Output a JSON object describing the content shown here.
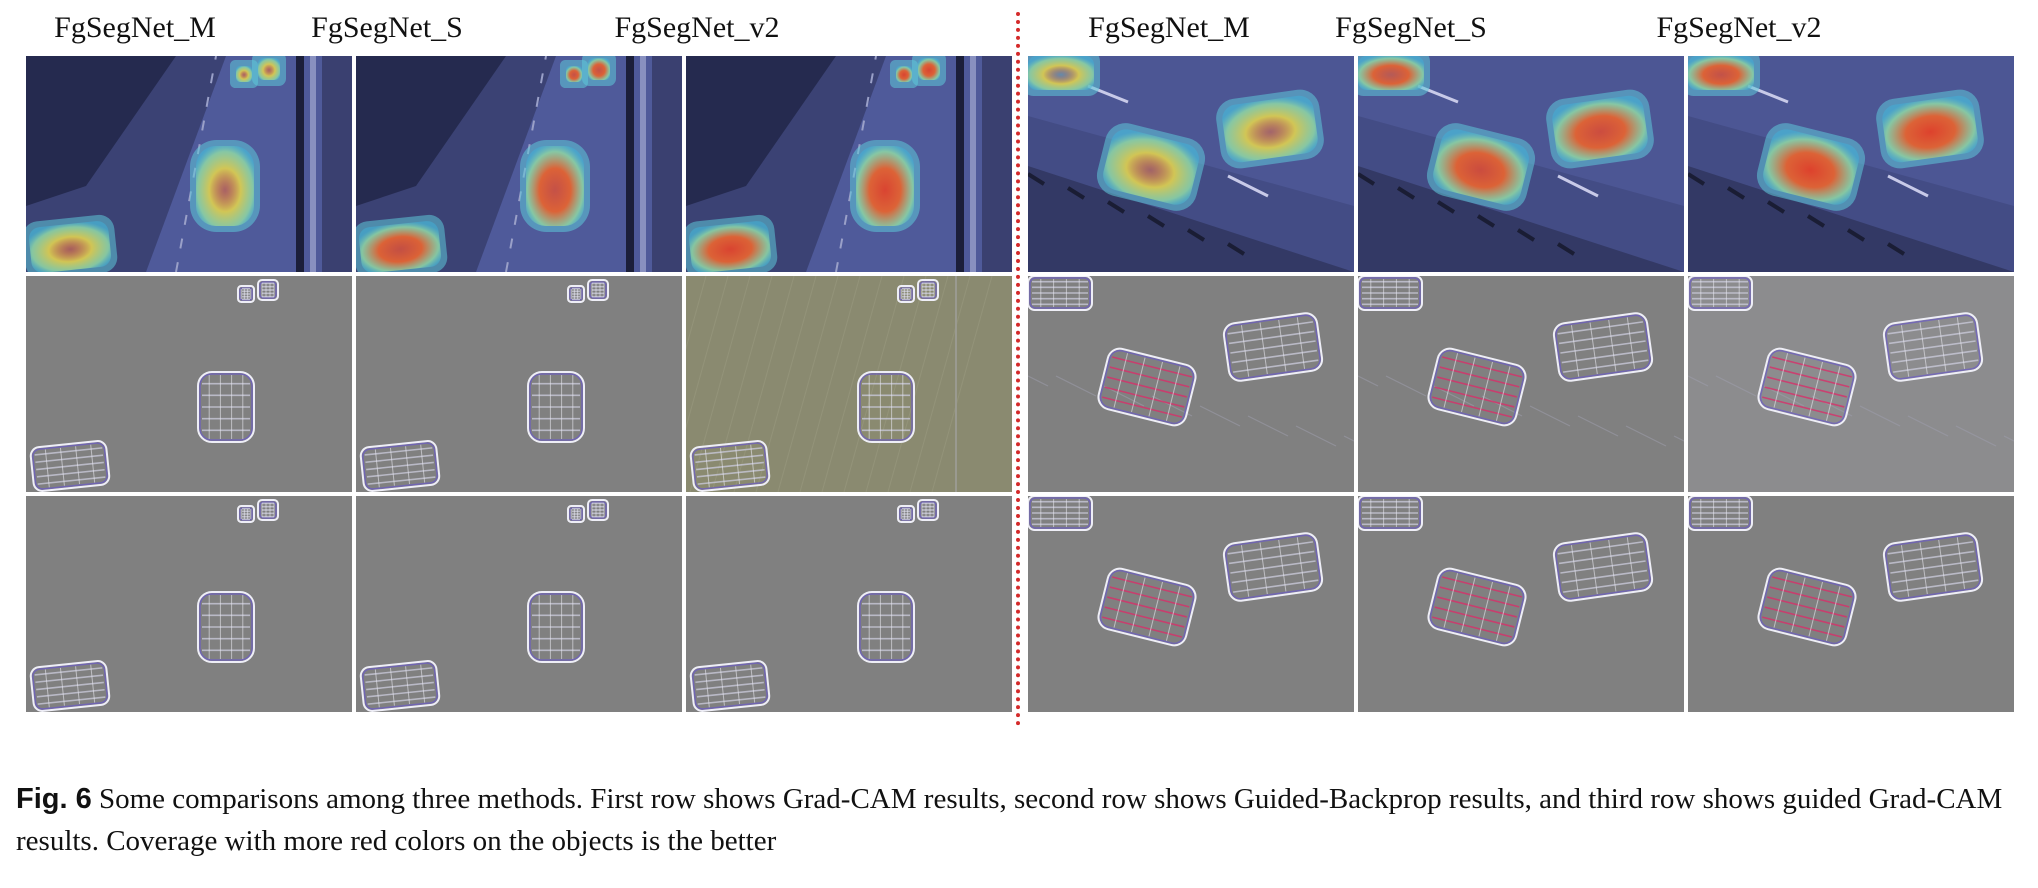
{
  "columns": [
    {
      "title": "FgSegNet_M"
    },
    {
      "title": "FgSegNet_S"
    },
    {
      "title": "FgSegNet_v2"
    },
    {
      "title": "FgSegNet_M"
    },
    {
      "title": "FgSegNet_S"
    },
    {
      "title": "FgSegNet_v2"
    }
  ],
  "rows": [
    "Grad-CAM",
    "Guided-Backprop",
    "guided Grad-CAM"
  ],
  "caption": {
    "label": "Fig. 6",
    "text": "Some comparisons among three methods. First row shows Grad-CAM results, second row shows Guided-Backprop results, and third row shows guided Grad-CAM results. Coverage with more red colors on the objects is the better"
  },
  "colors": {
    "divider": "#d42a2a",
    "road": "#4f5a9a",
    "gray_map": "#808080",
    "heat_hot": "#e0402a",
    "heat_warm": "#e8d860"
  }
}
